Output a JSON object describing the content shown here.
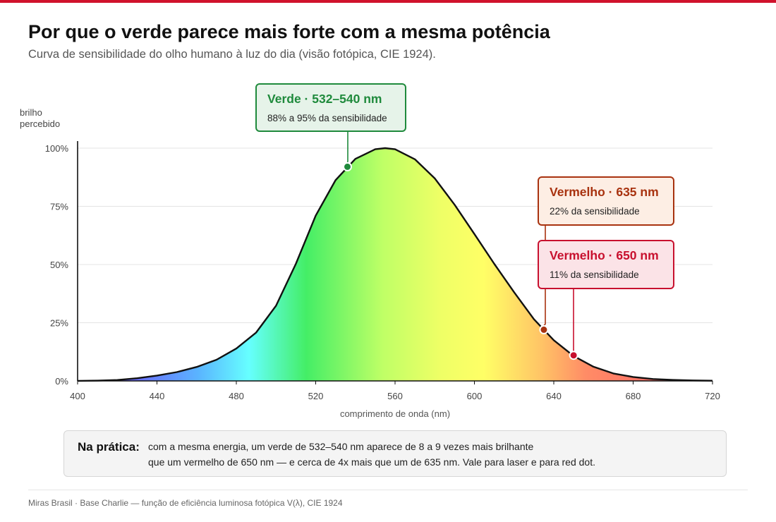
{
  "header": {
    "title": "Por que o verde parece mais forte com a mesma potência",
    "subtitle": "Curva de sensibilidade do olho humano à luz do dia (visão fotópica, CIE 1924)."
  },
  "chart_data": {
    "type": "area",
    "xlabel": "comprimento de onda (nm)",
    "ylabel": [
      "brilho",
      "percebido"
    ],
    "xlim": [
      400,
      720
    ],
    "ylim": [
      0,
      100
    ],
    "xticks": [
      400,
      440,
      480,
      520,
      560,
      600,
      640,
      680,
      720
    ],
    "yticks": [
      0,
      25,
      50,
      75,
      100
    ],
    "ytick_labels": [
      "0%",
      "25%",
      "50%",
      "75%",
      "100%"
    ],
    "grid": true,
    "series": [
      {
        "x": [
          400,
          410,
          420,
          430,
          440,
          450,
          460,
          470,
          480,
          490,
          500,
          510,
          520,
          530,
          540,
          550,
          555,
          560,
          570,
          580,
          590,
          600,
          610,
          620,
          630,
          635,
          640,
          650,
          660,
          670,
          680,
          690,
          700,
          710,
          720
        ],
        "values": [
          0.04,
          0.12,
          0.4,
          1.16,
          2.3,
          3.8,
          6.0,
          9.1,
          13.9,
          20.8,
          32.3,
          50.3,
          71.0,
          86.2,
          95.4,
          99.5,
          100.0,
          99.5,
          95.2,
          87.0,
          75.7,
          63.1,
          50.3,
          38.1,
          26.5,
          22.0,
          17.5,
          10.7,
          6.1,
          3.2,
          1.7,
          0.82,
          0.41,
          0.21,
          0.1
        ]
      }
    ],
    "markers": [
      {
        "x": 536,
        "y": 92,
        "color": "#1f8a3c",
        "callout": "verde"
      },
      {
        "x": 635,
        "y": 22,
        "color": "#a8320f",
        "callout": "verm635"
      },
      {
        "x": 650,
        "y": 11,
        "color": "#c8102e",
        "callout": "verm650"
      }
    ],
    "annotations": {
      "verde": {
        "title": "Verde · 532–540 nm",
        "text": "88% a 95% da sensibilidade",
        "color": "#1f8a3c",
        "bg": "#e6f3e9"
      },
      "verm635": {
        "title": "Vermelho · 635 nm",
        "text": "22% da sensibilidade",
        "color": "#a8320f",
        "bg": "#fdeee4"
      },
      "verm650": {
        "title": "Vermelho · 650 nm",
        "text": "11% da sensibilidade",
        "color": "#c8102e",
        "bg": "#fbe3e7"
      }
    }
  },
  "note": {
    "label": "Na prática:",
    "line1": "com a mesma energia, um verde de 532–540 nm aparece de 8 a 9 vezes mais brilhante",
    "line2": "que um vermelho de 650 nm — e cerca de 4x mais que um de 635 nm. Vale para laser e para red dot."
  },
  "footer": "Miras Brasil · Base Charlie — função de eficiência luminosa fotópica V(λ), CIE 1924"
}
